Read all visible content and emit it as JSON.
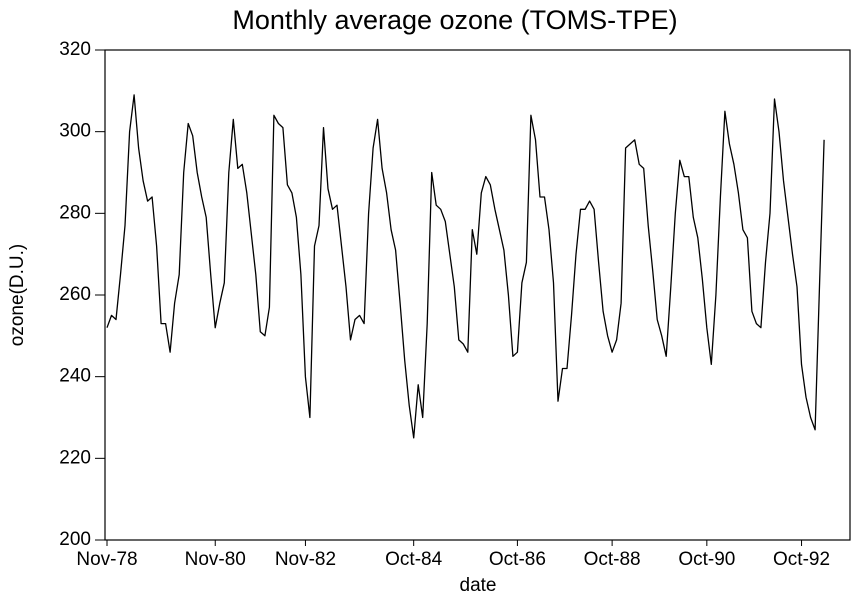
{
  "chart_data": {
    "type": "line",
    "title": "Monthly average ozone (TOMS-TPE)",
    "x_label": "date",
    "y_label": "ozone(D.U.)",
    "categories": [
      "Nov-78",
      null,
      null,
      null,
      null,
      null,
      null,
      null,
      null,
      null,
      null,
      null,
      null,
      null,
      null,
      null,
      null,
      null,
      null,
      null,
      null,
      null,
      null,
      null,
      "Nov-80",
      null,
      null,
      null,
      null,
      null,
      null,
      null,
      null,
      null,
      null,
      null,
      null,
      null,
      null,
      null,
      null,
      null,
      null,
      null,
      "Nov-82",
      null,
      null,
      null,
      null,
      null,
      null,
      null,
      null,
      null,
      null,
      null,
      null,
      null,
      null,
      null,
      null,
      null,
      null,
      null,
      null,
      null,
      null,
      null,
      "Oct-84",
      null,
      null,
      null,
      null,
      null,
      null,
      null,
      null,
      null,
      null,
      null,
      null,
      null,
      null,
      null,
      null,
      null,
      null,
      null,
      null,
      null,
      null,
      "Oct-86",
      null,
      null,
      null,
      null,
      null,
      null,
      null,
      null,
      null,
      null,
      null,
      null,
      null,
      null,
      null,
      null,
      null,
      null,
      null,
      null,
      "Oct-88",
      null,
      null,
      null,
      null,
      null,
      null,
      null,
      null,
      null,
      null,
      null,
      null,
      null,
      null,
      null,
      null,
      null,
      null,
      null,
      null,
      "Oct-90",
      null,
      null,
      null,
      null,
      null,
      null,
      null,
      null,
      null,
      null,
      null,
      null,
      null,
      null,
      null,
      null,
      null,
      null,
      null,
      null,
      "Oct-92",
      null,
      null,
      null,
      null,
      null
    ],
    "values": [
      252,
      255,
      254,
      265,
      277,
      300,
      309,
      296,
      288,
      283,
      284,
      272,
      253,
      253,
      246,
      258,
      265,
      290,
      302,
      299,
      290,
      284,
      279,
      265,
      252,
      258,
      263,
      290,
      303,
      291,
      292,
      285,
      275,
      265,
      251,
      250,
      257,
      304,
      302,
      301,
      287,
      285,
      279,
      265,
      240,
      230,
      272,
      277,
      301,
      286,
      281,
      282,
      272,
      262,
      249,
      254,
      255,
      253,
      280,
      296,
      303,
      291,
      285,
      276,
      271,
      258,
      244,
      233,
      225,
      238,
      230,
      253,
      290,
      282,
      281,
      278,
      270,
      262,
      249,
      248,
      246,
      276,
      270,
      285,
      289,
      287,
      281,
      276,
      271,
      260,
      245,
      246,
      263,
      268,
      304,
      298,
      284,
      284,
      276,
      263,
      234,
      242,
      242,
      255,
      270,
      281,
      281,
      283,
      281,
      268,
      256,
      250,
      246,
      249,
      258,
      296,
      297,
      298,
      292,
      291,
      277,
      266,
      254,
      250,
      245,
      262,
      280,
      293,
      289,
      289,
      279,
      274,
      264,
      252,
      243,
      260,
      284,
      305,
      297,
      292,
      285,
      276,
      274,
      256,
      253,
      252,
      268,
      280,
      308,
      300,
      288,
      279,
      270,
      262,
      243,
      235,
      230,
      227,
      263,
      298
    ],
    "color": "#000000",
    "ylim": [
      200,
      320
    ],
    "yticks": [
      200,
      220,
      240,
      260,
      280,
      300,
      320
    ],
    "grid": false
  }
}
